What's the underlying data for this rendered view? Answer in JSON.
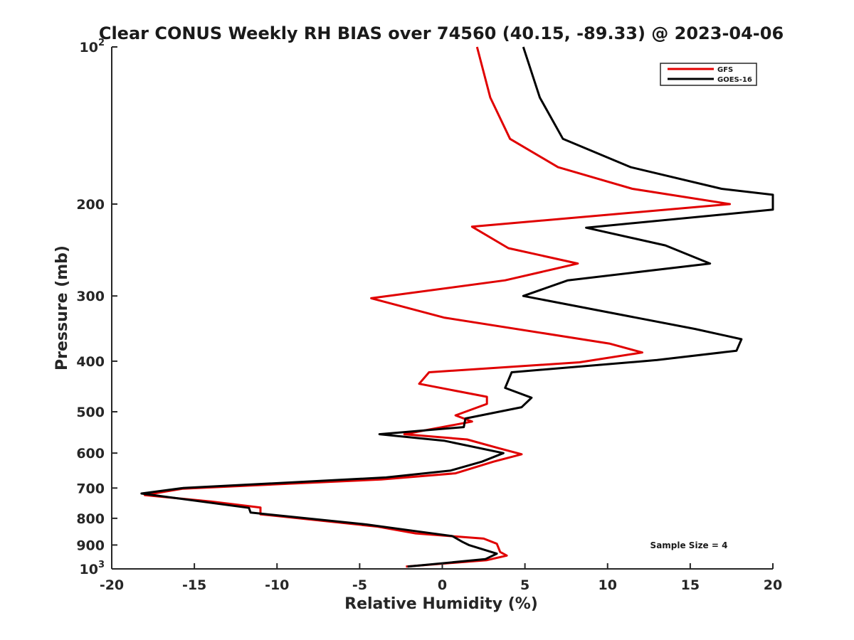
{
  "chart_data": {
    "type": "line",
    "title": "Clear CONUS Weekly RH BIAS over 74560 (40.15, -89.33) @ 2023-04-06",
    "xlabel": "Relative Humidity (%)",
    "ylabel": "Pressure (mb)",
    "xlim": [
      -20,
      20
    ],
    "ylim": [
      100,
      1000
    ],
    "y_scale": "log",
    "y_reversed": true,
    "grid": false,
    "x_ticks": [
      -20,
      -15,
      -10,
      -5,
      0,
      5,
      10,
      15,
      20
    ],
    "x_tick_labels": [
      "-20",
      "-15",
      "-10",
      "-5",
      "0",
      "5",
      "10",
      "15",
      "20"
    ],
    "y_ticks": [
      {
        "value": 100,
        "base": "10",
        "exp": "2"
      },
      {
        "value": 200,
        "label": "200"
      },
      {
        "value": 300,
        "label": "300"
      },
      {
        "value": 400,
        "label": "400"
      },
      {
        "value": 500,
        "label": "500"
      },
      {
        "value": 600,
        "label": "600"
      },
      {
        "value": 700,
        "label": "700"
      },
      {
        "value": 800,
        "label": "800"
      },
      {
        "value": 900,
        "label": "900"
      },
      {
        "value": 1000,
        "base": "10",
        "exp": "3"
      }
    ],
    "legend_position": "top-right",
    "annotation": "Sample Size = 4",
    "series": [
      {
        "name": "GFS",
        "color": "#e00000",
        "points": [
          [
            2.1,
            100
          ],
          [
            2.9,
            125
          ],
          [
            4.1,
            150
          ],
          [
            7.0,
            170
          ],
          [
            11.5,
            187
          ],
          [
            17.4,
            200
          ],
          [
            1.8,
            221
          ],
          [
            4.0,
            243
          ],
          [
            8.2,
            260
          ],
          [
            3.8,
            280
          ],
          [
            -4.3,
            303
          ],
          [
            0.1,
            330
          ],
          [
            10.1,
            370
          ],
          [
            12.1,
            385
          ],
          [
            8.3,
            402
          ],
          [
            -0.8,
            420
          ],
          [
            -1.4,
            442
          ],
          [
            2.7,
            468
          ],
          [
            2.7,
            483
          ],
          [
            0.8,
            508
          ],
          [
            1.8,
            522
          ],
          [
            -2.3,
            552
          ],
          [
            1.5,
            565
          ],
          [
            3.4,
            587
          ],
          [
            4.8,
            603
          ],
          [
            3.1,
            623
          ],
          [
            0.8,
            656
          ],
          [
            -3.7,
            674
          ],
          [
            -15.7,
            702
          ],
          [
            -18.0,
            722
          ],
          [
            -14.0,
            743
          ],
          [
            -11.0,
            763
          ],
          [
            -11.0,
            786
          ],
          [
            -3.9,
            830
          ],
          [
            -1.6,
            855
          ],
          [
            2.5,
            875
          ],
          [
            3.3,
            895
          ],
          [
            3.5,
            928
          ],
          [
            3.9,
            943
          ],
          [
            2.7,
            962
          ],
          [
            -2.2,
            990
          ]
        ]
      },
      {
        "name": "GOES-16",
        "color": "#000000",
        "points": [
          [
            4.9,
            100
          ],
          [
            5.9,
            125
          ],
          [
            7.3,
            150
          ],
          [
            11.4,
            170
          ],
          [
            16.9,
            187
          ],
          [
            20.0,
            192
          ],
          [
            20.0,
            205
          ],
          [
            8.7,
            222
          ],
          [
            13.5,
            240
          ],
          [
            16.2,
            260
          ],
          [
            7.6,
            280
          ],
          [
            4.9,
            300
          ],
          [
            15.3,
            347
          ],
          [
            18.1,
            363
          ],
          [
            17.8,
            382
          ],
          [
            13.0,
            398
          ],
          [
            4.2,
            420
          ],
          [
            3.8,
            450
          ],
          [
            5.4,
            470
          ],
          [
            4.8,
            490
          ],
          [
            1.4,
            515
          ],
          [
            1.3,
            535
          ],
          [
            -3.8,
            552
          ],
          [
            0.1,
            568
          ],
          [
            3.7,
            600
          ],
          [
            2.4,
            623
          ],
          [
            0.5,
            648
          ],
          [
            -3.4,
            668
          ],
          [
            -15.7,
            700
          ],
          [
            -18.2,
            717
          ],
          [
            -11.7,
            764
          ],
          [
            -11.6,
            780
          ],
          [
            -4.6,
            822
          ],
          [
            -1.8,
            845
          ],
          [
            0.6,
            865
          ],
          [
            1.2,
            887
          ],
          [
            1.6,
            900
          ],
          [
            3.3,
            935
          ],
          [
            2.6,
            958
          ],
          [
            -2.1,
            990
          ]
        ]
      }
    ]
  }
}
